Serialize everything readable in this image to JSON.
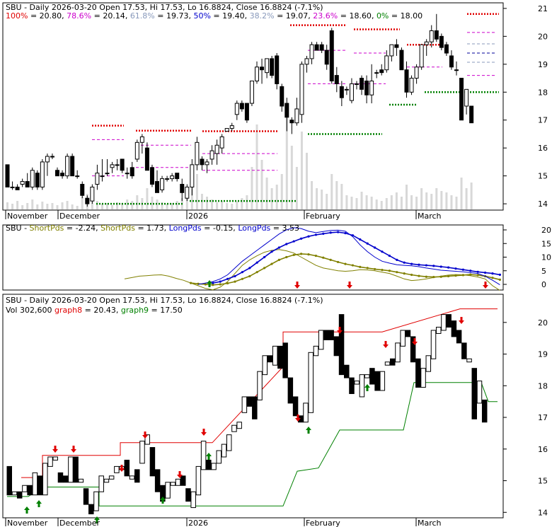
{
  "colors": {
    "red": "#e00000",
    "green": "#008000",
    "magenta": "#cc00cc",
    "blue": "#0000cc",
    "grayblue": "#8899bb",
    "olive": "#808000",
    "fib_red": "#cc0000",
    "fib_mag": "#cc00cc",
    "fib_blue": "#000099",
    "fib_green": "#008800",
    "volume": "#d8d8d8"
  },
  "panel1": {
    "header_symbol": "SBU - Daily 2026-03-20 Open 17.53, Hi 17.53, Lo 16.8824, Close 16.8824 (-7.1%)",
    "fib": [
      {
        "label": "100%",
        "value": "= 20.80",
        "color": "red"
      },
      {
        "label": "78.6%",
        "value": "= 20.14",
        "color": "magenta"
      },
      {
        "label": "61.8%",
        "value": "= 19.73",
        "color": "grayblue"
      },
      {
        "label": "50%",
        "value": "= 19.40",
        "color": "blue"
      },
      {
        "label": "38.2%",
        "value": "= 19.07",
        "color": "grayblue"
      },
      {
        "label": "23.6%",
        "value": "= 18.60",
        "color": "magenta"
      },
      {
        "label": "0%",
        "value": "= 18.00",
        "color": "green"
      }
    ],
    "yticks": [
      "21",
      "20",
      "19",
      "18",
      "17",
      "16",
      "15",
      "14"
    ],
    "xlabels": [
      "November",
      "December",
      "2026",
      "February",
      "March"
    ]
  },
  "panel2": {
    "header": [
      {
        "text": "SBU - ",
        "color": "black"
      },
      {
        "text": "ShortPds",
        "color": "olive"
      },
      {
        "text": " = -2.24, ",
        "color": "black"
      },
      {
        "text": "ShortPds",
        "color": "olive"
      },
      {
        "text": " = 1.73, ",
        "color": "black"
      },
      {
        "text": "LongPds",
        "color": "blue"
      },
      {
        "text": " = -0.15, ",
        "color": "black"
      },
      {
        "text": "LongPds",
        "color": "blue"
      },
      {
        "text": " = 3.53",
        "color": "black"
      }
    ],
    "yticks": [
      "20",
      "15",
      "10",
      "5",
      "0"
    ]
  },
  "panel3": {
    "header_line1": "SBU - Daily 2026-03-20 Open 17.53, Hi 17.53, Lo 16.8824, Close 16.8824 (-7.1%)",
    "header_line2": [
      {
        "text": "Vol 302,600 ",
        "color": "black"
      },
      {
        "text": "graph8",
        "color": "red"
      },
      {
        "text": " = 20.43, ",
        "color": "black"
      },
      {
        "text": "graph9",
        "color": "green"
      },
      {
        "text": " = 17.50",
        "color": "black"
      }
    ],
    "yticks": [
      "20",
      "19",
      "18",
      "17",
      "16",
      "15",
      "14"
    ],
    "xlabels": [
      "November",
      "December",
      "2026",
      "February",
      "March"
    ]
  },
  "chart_data": [
    {
      "type": "candlestick",
      "title": "SBU - Daily 2026-03-20 Open 17.53, Hi 17.53, Lo 16.8824, Close 16.8824 (-7.1%)",
      "ylim": [
        13.8,
        21.2
      ],
      "fib_levels": [
        20.8,
        20.14,
        19.73,
        19.4,
        19.07,
        18.6,
        18.0
      ],
      "candles": [
        [
          15.4,
          15.4,
          14.6,
          14.6
        ],
        [
          14.6,
          14.8,
          14.5,
          14.6
        ],
        [
          14.6,
          14.7,
          14.5,
          14.5
        ],
        [
          14.7,
          14.9,
          14.6,
          14.8
        ],
        [
          14.8,
          15.1,
          14.6,
          14.6
        ],
        [
          14.6,
          15.3,
          14.5,
          15.2
        ],
        [
          15.1,
          15.2,
          14.5,
          14.6
        ],
        [
          14.6,
          15.6,
          14.5,
          15.5
        ],
        [
          15.5,
          15.8,
          15.0,
          15.7
        ],
        [
          15.7,
          15.8,
          15.6,
          15.7
        ],
        [
          15.2,
          15.3,
          15.0,
          15.0
        ],
        [
          15.1,
          15.2,
          14.9,
          15.0
        ],
        [
          15.0,
          15.8,
          14.9,
          15.7
        ],
        [
          15.7,
          15.8,
          15.0,
          15.0
        ],
        [
          15.0,
          15.2,
          14.9,
          15.0
        ],
        [
          14.7,
          14.8,
          14.2,
          14.3
        ],
        [
          14.2,
          14.3,
          13.9,
          14.0
        ],
        [
          14.1,
          14.7,
          14.0,
          14.6
        ],
        [
          14.7,
          15.4,
          14.5,
          15.1
        ],
        [
          15.0,
          15.6,
          14.8,
          15.0
        ],
        [
          15.1,
          15.6,
          15.0,
          15.1
        ],
        [
          15.3,
          15.5,
          15.1,
          15.4
        ],
        [
          15.4,
          15.6,
          15.2,
          15.4
        ],
        [
          15.6,
          15.6,
          15.1,
          15.2
        ],
        [
          15.1,
          15.3,
          14.9,
          15.1
        ],
        [
          15.3,
          15.5,
          14.9,
          15.0
        ],
        [
          15.6,
          16.3,
          15.5,
          16.2
        ],
        [
          16.2,
          16.5,
          15.8,
          16.4
        ],
        [
          16.0,
          16.2,
          15.2,
          15.2
        ],
        [
          15.3,
          15.4,
          14.6,
          14.7
        ],
        [
          14.8,
          15.2,
          14.4,
          14.4
        ],
        [
          14.5,
          15.0,
          14.4,
          14.9
        ],
        [
          14.9,
          15.0,
          14.8,
          14.9
        ],
        [
          14.9,
          15.1,
          14.8,
          15.0
        ],
        [
          15.1,
          15.1,
          14.8,
          14.9
        ],
        [
          14.7,
          14.9,
          14.1,
          14.4
        ],
        [
          14.2,
          14.7,
          14.1,
          14.6
        ],
        [
          14.6,
          15.6,
          14.3,
          15.4
        ],
        [
          15.4,
          16.4,
          15.2,
          16.2
        ],
        [
          15.6,
          15.7,
          15.2,
          15.4
        ],
        [
          15.4,
          15.6,
          15.1,
          15.5
        ],
        [
          15.6,
          16.1,
          15.4,
          15.9
        ],
        [
          15.8,
          16.3,
          15.4,
          16.1
        ],
        [
          16.0,
          16.5,
          15.8,
          16.4
        ],
        [
          16.6,
          16.7,
          16.6,
          16.7
        ],
        [
          16.7,
          16.9,
          16.6,
          16.8
        ],
        [
          17.2,
          17.7,
          17.0,
          17.6
        ],
        [
          17.6,
          17.7,
          17.3,
          17.4
        ],
        [
          17.6,
          17.6,
          16.9,
          17.0
        ],
        [
          17.6,
          18.4,
          17.5,
          18.4
        ],
        [
          18.4,
          19.1,
          18.3,
          18.9
        ],
        [
          18.9,
          19.2,
          18.3,
          18.8
        ],
        [
          18.7,
          19.2,
          18.5,
          19.2
        ],
        [
          19.2,
          19.3,
          18.5,
          18.6
        ],
        [
          19.3,
          19.4,
          18.1,
          18.3
        ],
        [
          18.2,
          18.3,
          17.3,
          17.5
        ],
        [
          17.6,
          17.8,
          16.6,
          17.1
        ],
        [
          17.0,
          17.1,
          16.5,
          16.9
        ],
        [
          16.9,
          17.8,
          16.8,
          17.4
        ],
        [
          17.2,
          19.1,
          16.9,
          19.0
        ],
        [
          19.0,
          19.3,
          18.7,
          19.2
        ],
        [
          19.2,
          19.8,
          19.0,
          19.7
        ],
        [
          19.7,
          19.8,
          19.5,
          19.5
        ],
        [
          19.7,
          19.8,
          19.4,
          19.5
        ],
        [
          19.5,
          19.7,
          18.8,
          19.0
        ],
        [
          20.2,
          20.3,
          18.3,
          18.4
        ],
        [
          18.6,
          18.9,
          18.0,
          18.3
        ],
        [
          18.2,
          18.4,
          17.5,
          17.8
        ],
        [
          18.1,
          18.2,
          17.9,
          18.1
        ],
        [
          17.7,
          18.5,
          17.6,
          18.3
        ],
        [
          18.3,
          18.4,
          18.1,
          18.3
        ],
        [
          18.5,
          18.6,
          17.9,
          18.1
        ],
        [
          18.4,
          18.6,
          17.6,
          17.9
        ],
        [
          17.9,
          19.0,
          17.6,
          18.4
        ],
        [
          18.7,
          18.8,
          18.5,
          18.7
        ],
        [
          18.8,
          19.0,
          18.6,
          18.7
        ],
        [
          18.8,
          19.5,
          18.7,
          19.3
        ],
        [
          19.3,
          19.7,
          19.1,
          19.7
        ],
        [
          19.7,
          19.9,
          19.3,
          19.6
        ],
        [
          19.5,
          19.6,
          18.8,
          18.8
        ],
        [
          18.8,
          19.1,
          17.8,
          18.0
        ],
        [
          18.0,
          18.6,
          17.9,
          18.5
        ],
        [
          18.5,
          19.0,
          18.3,
          18.9
        ],
        [
          18.9,
          19.7,
          18.8,
          19.7
        ],
        [
          19.7,
          19.9,
          19.3,
          19.8
        ],
        [
          19.8,
          20.4,
          19.6,
          20.2
        ],
        [
          20.2,
          20.8,
          19.8,
          19.9
        ],
        [
          20.0,
          20.1,
          19.5,
          19.6
        ],
        [
          19.7,
          19.8,
          19.3,
          19.4
        ],
        [
          19.3,
          19.5,
          18.8,
          18.9
        ],
        [
          18.8,
          19.1,
          18.6,
          18.8
        ],
        [
          18.5,
          18.5,
          17.0,
          17.0
        ],
        [
          17.5,
          18.1,
          17.2,
          18.1
        ],
        [
          17.5,
          17.5,
          16.9,
          16.9
        ]
      ]
    },
    {
      "type": "line",
      "title": "SBU - ShortPds = -2.24, ShortPds = 1.73, LongPds = -0.15, LongPds = 3.53",
      "ylim": [
        -2,
        21
      ],
      "series": [
        {
          "name": "ShortPds",
          "color": "olive",
          "values": [
            2,
            2.5,
            3,
            3.2,
            3.4,
            3.5,
            3,
            2.2,
            1.5,
            0.5,
            -0.5,
            -1.5,
            -2,
            -1,
            1,
            4,
            7,
            9,
            10.5,
            11.8,
            12.5,
            12.8,
            12.3,
            11.5,
            10,
            8.5,
            7,
            6,
            5.5,
            5,
            4.8,
            5.0,
            5.4,
            5.3,
            5,
            4.5,
            4,
            3,
            2,
            1.4,
            1.6,
            2,
            2.5,
            3,
            3.4,
            3.6,
            3.5,
            3.2,
            2.7,
            2,
            -0.5,
            -2.24
          ]
        },
        {
          "name": "ShortPds",
          "color": "olive",
          "values": [
            null,
            null,
            null,
            null,
            null,
            null,
            null,
            null,
            null,
            0.5,
            0.2,
            0,
            -0.2,
            0,
            0.4,
            1,
            2,
            3,
            4.5,
            6,
            7.5,
            9,
            10,
            10.8,
            11.2,
            11,
            10.5,
            9.8,
            9,
            8.2,
            7.5,
            7,
            6.4,
            6,
            5.6,
            5.3,
            5,
            4.5,
            4,
            3.5,
            3.1,
            2.8,
            2.7,
            2.8,
            3,
            3.2,
            3.4,
            3.6,
            3.4,
            3,
            2.4,
            1.73
          ]
        },
        {
          "name": "LongPds",
          "color": "blue",
          "values": [
            null,
            null,
            null,
            null,
            null,
            null,
            null,
            null,
            null,
            null,
            0,
            0.5,
            1,
            2,
            3.5,
            6,
            8.5,
            10.5,
            12.5,
            14.5,
            16.5,
            18.5,
            20,
            20.8,
            20.5,
            19.5,
            19,
            19.4,
            19.8,
            19.9,
            19.5,
            17.5,
            14.5,
            12,
            10,
            8.5,
            7.8,
            7.2,
            7,
            6.8,
            6.5,
            6,
            5.6,
            5.2,
            5,
            4.8,
            4.6,
            4.3,
            4,
            3,
            1.5,
            -0.15
          ]
        },
        {
          "name": "LongPds",
          "color": "blue",
          "values": [
            null,
            null,
            null,
            null,
            null,
            null,
            null,
            null,
            null,
            null,
            null,
            null,
            0.5,
            1,
            2,
            3,
            4.5,
            6,
            8,
            10,
            12,
            13.5,
            14.8,
            15.8,
            16.8,
            17.6,
            18.2,
            18.6,
            19,
            19.2,
            18.8,
            18,
            16.5,
            15,
            13.5,
            12,
            10.5,
            9,
            8,
            7.5,
            7.2,
            7,
            6.8,
            6.5,
            6.2,
            5.8,
            5.4,
            5,
            4.6,
            4.3,
            4,
            3.53
          ]
        }
      ]
    },
    {
      "type": "candlestick",
      "title": "SBU - Daily 2026-03-20 Open 17.53, Hi 17.53, Lo 16.8824, Close 16.8824 (-7.1%)",
      "ylim": [
        13.9,
        20.8
      ],
      "series": [
        {
          "name": "graph8",
          "color": "red",
          "values": "stepped resistance 15.1 → 20.43"
        },
        {
          "name": "graph9",
          "color": "green",
          "values": "stepped support 14.8 → 17.50"
        }
      ]
    }
  ]
}
